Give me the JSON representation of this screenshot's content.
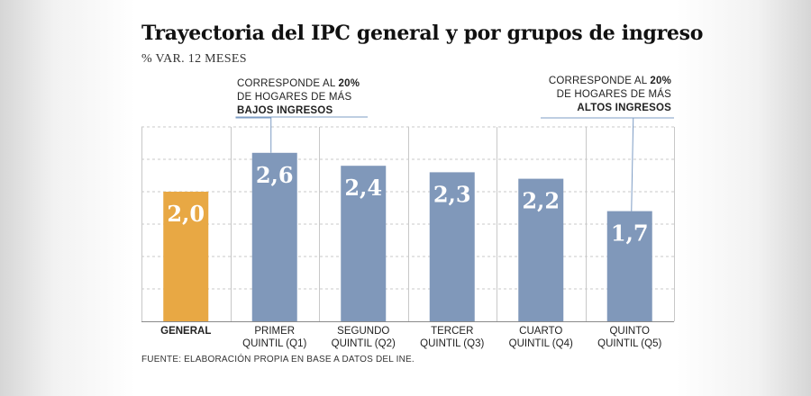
{
  "title": "Trayectoria del IPC general y por grupos de ingreso",
  "subtitle": "% VAR. 12 MESES",
  "callouts": {
    "low": {
      "prefix": "CORRESPONDE AL ",
      "pct": "20%",
      "line2": "DE HOGARES DE MÁS",
      "line3": "BAJOS INGRESOS"
    },
    "high": {
      "prefix": "CORRESPONDE AL ",
      "pct": "20%",
      "line2": "DE HOGARES DE MÁS",
      "line3": "ALTOS INGRESOS"
    }
  },
  "source": "FUENTE: ELABORACIÓN PROPIA EN BASE A DATOS DEL INE.",
  "colors": {
    "general": "#E8A844",
    "quintil": "#8098BA",
    "grid": "#C8C8C8"
  },
  "chart_data": {
    "type": "bar",
    "title": "Trayectoria del IPC general y por grupos de ingreso",
    "ylabel": "% VAR. 12 MESES",
    "ylim": [
      0,
      3.0
    ],
    "categories": [
      [
        "GENERAL"
      ],
      [
        "PRIMER",
        "QUINTIL (Q1)"
      ],
      [
        "SEGUNDO",
        "QUINTIL (Q2)"
      ],
      [
        "TERCER",
        "QUINTIL (Q3)"
      ],
      [
        "CUARTO",
        "QUINTIL (Q4)"
      ],
      [
        "QUINTO",
        "QUINTIL (Q5)"
      ]
    ],
    "values": [
      2.0,
      2.6,
      2.4,
      2.3,
      2.2,
      1.7
    ],
    "labels": [
      "2,0",
      "2,6",
      "2,4",
      "2,3",
      "2,2",
      "1,7"
    ],
    "grid": true
  }
}
